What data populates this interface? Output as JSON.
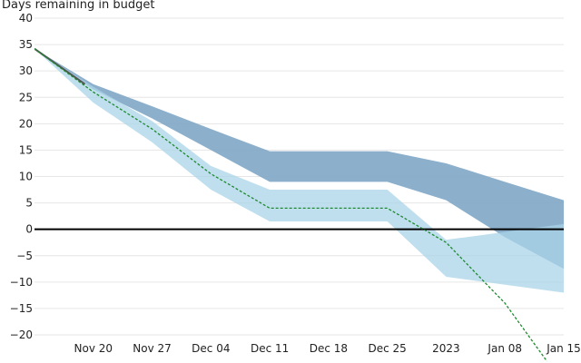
{
  "chart_data": {
    "type": "area",
    "title": "",
    "ylabel": "Days remaining in budget",
    "xlabel": "",
    "ylim": [
      -20,
      40
    ],
    "yticks": [
      40,
      35,
      30,
      25,
      20,
      15,
      10,
      5,
      0,
      -5,
      -10,
      -15,
      -20
    ],
    "xlim": [
      "2022-11-13",
      "2023-01-15"
    ],
    "xticks": [
      {
        "date": "2022-11-20",
        "label": "Nov 20"
      },
      {
        "date": "2022-11-27",
        "label": "Nov 27"
      },
      {
        "date": "2022-12-04",
        "label": "Dec 04"
      },
      {
        "date": "2022-12-11",
        "label": "Dec 11"
      },
      {
        "date": "2022-12-18",
        "label": "Dec 18"
      },
      {
        "date": "2022-12-25",
        "label": "Dec 25"
      },
      {
        "date": "2023-01-01",
        "label": "2023"
      },
      {
        "date": "2023-01-08",
        "label": "Jan 08"
      },
      {
        "date": "2023-01-15",
        "label": "Jan 15"
      }
    ],
    "zero_line": 0,
    "grid": "horizontal",
    "colors": {
      "dark_band": "#7fa7c7",
      "light_band": "#a9d4e8",
      "dashed_line": "#1f8a2f",
      "dark_line": "#555555",
      "zero_line": "#000000",
      "grid": "#e6e6e6"
    },
    "series": [
      {
        "kind": "band",
        "style": "dark",
        "x": [
          "2022-11-13",
          "2022-11-20",
          "2022-11-27",
          "2022-12-04",
          "2022-12-11",
          "2022-12-18",
          "2022-12-25",
          "2023-01-01",
          "2023-01-08",
          "2023-01-15"
        ],
        "upper": [
          34.2,
          27.5,
          23.3,
          19.0,
          14.8,
          14.8,
          14.8,
          12.5,
          9.0,
          5.5
        ],
        "lower": [
          34.2,
          26.5,
          21.0,
          15.0,
          9.0,
          9.0,
          9.0,
          5.5,
          -1.5,
          -7.5
        ]
      },
      {
        "kind": "band",
        "style": "light",
        "x": [
          "2022-11-13",
          "2022-11-20",
          "2022-11-27",
          "2022-12-04",
          "2022-12-11",
          "2022-12-18",
          "2022-12-25",
          "2023-01-01",
          "2023-01-08",
          "2023-01-15"
        ],
        "upper": [
          34.2,
          27.0,
          20.5,
          12.0,
          7.5,
          7.5,
          7.5,
          -2.0,
          -0.5,
          1.0
        ],
        "lower": [
          34.2,
          24.0,
          16.5,
          7.5,
          1.5,
          1.5,
          1.5,
          -9.0,
          -10.5,
          -12.0
        ]
      },
      {
        "kind": "line",
        "style": "dark",
        "x": [
          "2022-11-13",
          "2022-11-19"
        ],
        "y": [
          34.2,
          27.5
        ]
      },
      {
        "kind": "line",
        "style": "dashed",
        "x": [
          "2022-11-13",
          "2022-11-20",
          "2022-11-27",
          "2022-12-04",
          "2022-12-11",
          "2022-12-18",
          "2022-12-25",
          "2023-01-01",
          "2023-01-08",
          "2023-01-13"
        ],
        "y": [
          34.2,
          26.0,
          19.0,
          10.5,
          4.0,
          4.0,
          4.0,
          -2.5,
          -14.0,
          -25.0
        ]
      }
    ]
  }
}
